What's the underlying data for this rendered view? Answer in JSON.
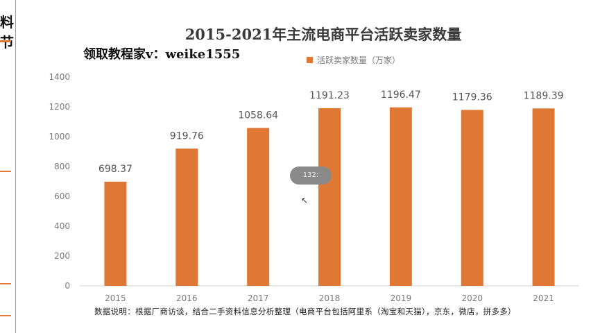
{
  "window": {
    "left_strip_text": "料节"
  },
  "watermark": "领取教程家v：weike1555",
  "tooltip_text": "132:",
  "footnote": "数据说明：根据厂商访谈，结合二手资料信息分析整理（电商平台包括阿里系（淘宝和天猫），京东，微店，拼多多）",
  "colors": {
    "bar": "#e07835",
    "axis_text": "#7a7a7a",
    "label_text": "#555555"
  },
  "chart_data": {
    "type": "bar",
    "title": "2015-2021年主流电商平台活跃卖家数量",
    "xlabel": "",
    "ylabel": "",
    "categories": [
      "2015",
      "2016",
      "2017",
      "2018",
      "2019",
      "2020",
      "2021"
    ],
    "series": [
      {
        "name": "活跃卖家数量（万家）",
        "values": [
          698.37,
          919.76,
          1058.64,
          1191.23,
          1196.47,
          1179.36,
          1189.39
        ]
      }
    ],
    "data_labels": [
      "698.37",
      "919.76",
      "1058.64",
      "1191.23",
      "1196.47",
      "1179.36",
      "1189.39"
    ],
    "ylim": [
      0,
      1400
    ],
    "yticks": [
      "0",
      "200",
      "400",
      "600",
      "800",
      "1000",
      "1200",
      "1400"
    ],
    "grid": false,
    "legend_position": "top-center"
  }
}
